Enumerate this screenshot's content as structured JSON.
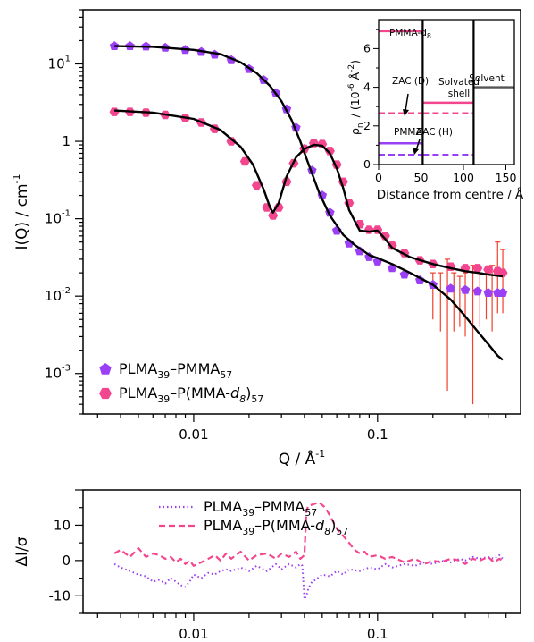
{
  "colors": {
    "purple": "#9b3ff5",
    "pink": "#f2468f",
    "fit": "#000000",
    "errorbar": "#f2402a",
    "inset_shell_label": "#8a8cf0",
    "inset_solvent_line": "#555555"
  },
  "chart_data": [
    {
      "type": "scatter",
      "xscale": "log",
      "yscale": "log",
      "xlim": [
        0.0025,
        0.6
      ],
      "ylim": [
        0.0003,
        50
      ],
      "xlabel": "Q / Å",
      "xlabel_sup": "-1",
      "ylabel": "I(Q) / cm",
      "ylabel_sup": "-1",
      "xticks": [
        {
          "value": 0.01,
          "label": "0.01"
        },
        {
          "value": 0.1,
          "label": "0.1"
        }
      ],
      "yticks": [
        {
          "value": 10,
          "base": "10",
          "exp": "1"
        },
        {
          "value": 1,
          "base": "1",
          "exp": ""
        },
        {
          "value": 0.1,
          "base": "10",
          "exp": "-1"
        },
        {
          "value": 0.01,
          "base": "10",
          "exp": "-2"
        },
        {
          "value": 0.001,
          "base": "10",
          "exp": "-3"
        }
      ],
      "legend": {
        "placement": "bottom-left",
        "entries": [
          {
            "parts": [
              [
                "PLMA",
                ""
              ],
              [
                "39",
                "sub"
              ],
              [
                "–PMMA",
                ""
              ],
              [
                "57",
                "sub"
              ]
            ]
          },
          {
            "parts": [
              [
                "PLMA",
                ""
              ],
              [
                "39",
                "sub"
              ],
              [
                "–P(MMA-",
                ""
              ],
              [
                "d",
                "italic"
              ],
              [
                "8",
                "sub-italic"
              ],
              [
                ")",
                ""
              ],
              [
                "57",
                "sub"
              ]
            ]
          }
        ]
      },
      "series": [
        {
          "marker": "pentagon",
          "x": [
            0.0037,
            0.0045,
            0.0055,
            0.007,
            0.009,
            0.011,
            0.013,
            0.016,
            0.02,
            0.024,
            0.028,
            0.032,
            0.036,
            0.04,
            0.044,
            0.05,
            0.055,
            0.06,
            0.07,
            0.08,
            0.09,
            0.1,
            0.12,
            0.14,
            0.17,
            0.2,
            0.25,
            0.3,
            0.35,
            0.4,
            0.45,
            0.48
          ],
          "y": [
            17,
            17,
            16.8,
            16.2,
            15.2,
            14.3,
            13.2,
            11.2,
            8.6,
            6.2,
            4.2,
            2.6,
            1.5,
            0.8,
            0.42,
            0.2,
            0.12,
            0.07,
            0.048,
            0.038,
            0.032,
            0.028,
            0.023,
            0.019,
            0.016,
            0.014,
            0.0125,
            0.012,
            0.0115,
            0.011,
            0.011,
            0.011
          ]
        },
        {
          "marker": "hexagon",
          "x": [
            0.0037,
            0.0045,
            0.0055,
            0.007,
            0.009,
            0.011,
            0.013,
            0.016,
            0.019,
            0.022,
            0.025,
            0.027,
            0.029,
            0.032,
            0.035,
            0.04,
            0.045,
            0.05,
            0.055,
            0.06,
            0.065,
            0.07,
            0.08,
            0.09,
            0.1,
            0.11,
            0.12,
            0.14,
            0.17,
            0.2,
            0.25,
            0.3,
            0.35,
            0.4,
            0.45,
            0.48
          ],
          "y": [
            2.4,
            2.4,
            2.35,
            2.2,
            2.0,
            1.75,
            1.45,
            1.0,
            0.55,
            0.27,
            0.14,
            0.11,
            0.14,
            0.3,
            0.52,
            0.8,
            0.95,
            0.92,
            0.75,
            0.5,
            0.3,
            0.16,
            0.085,
            0.072,
            0.072,
            0.06,
            0.045,
            0.036,
            0.029,
            0.026,
            0.024,
            0.023,
            0.023,
            0.022,
            0.021,
            0.02
          ]
        }
      ],
      "fits": [
        {
          "x": [
            0.0037,
            0.006,
            0.01,
            0.014,
            0.018,
            0.022,
            0.026,
            0.03,
            0.034,
            0.038,
            0.042,
            0.048,
            0.055,
            0.065,
            0.075,
            0.09,
            0.1,
            0.12,
            0.15,
            0.2,
            0.25,
            0.3,
            0.35,
            0.4,
            0.45,
            0.48
          ],
          "y": [
            17,
            16.6,
            15.2,
            13.4,
            10.5,
            7.6,
            5.2,
            3.3,
            1.9,
            1.0,
            0.52,
            0.22,
            0.11,
            0.062,
            0.046,
            0.034,
            0.031,
            0.026,
            0.02,
            0.014,
            0.009,
            0.0055,
            0.0035,
            0.0024,
            0.0017,
            0.0015
          ]
        },
        {
          "x": [
            0.0037,
            0.006,
            0.01,
            0.014,
            0.018,
            0.021,
            0.024,
            0.026,
            0.027,
            0.029,
            0.032,
            0.036,
            0.04,
            0.045,
            0.05,
            0.055,
            0.06,
            0.065,
            0.07,
            0.08,
            0.09,
            0.1,
            0.11,
            0.12,
            0.15,
            0.2,
            0.25,
            0.3,
            0.35,
            0.4,
            0.48
          ],
          "y": [
            2.5,
            2.35,
            1.95,
            1.4,
            0.85,
            0.5,
            0.24,
            0.14,
            0.12,
            0.16,
            0.35,
            0.62,
            0.8,
            0.9,
            0.88,
            0.7,
            0.45,
            0.25,
            0.13,
            0.07,
            0.068,
            0.07,
            0.055,
            0.042,
            0.032,
            0.026,
            0.023,
            0.021,
            0.02,
            0.019,
            0.018
          ]
        }
      ],
      "errorbars": [
        {
          "x": 0.2,
          "ylo": 0.005,
          "yhi": 0.02
        },
        {
          "x": 0.22,
          "ylo": 0.0035,
          "yhi": 0.02
        },
        {
          "x": 0.24,
          "ylo": 0.0006,
          "yhi": 0.03
        },
        {
          "x": 0.26,
          "ylo": 0.0035,
          "yhi": 0.02
        },
        {
          "x": 0.28,
          "ylo": 0.004,
          "yhi": 0.018
        },
        {
          "x": 0.3,
          "ylo": 0.003,
          "yhi": 0.02
        },
        {
          "x": 0.33,
          "ylo": 0.0004,
          "yhi": 0.025
        },
        {
          "x": 0.36,
          "ylo": 0.004,
          "yhi": 0.02
        },
        {
          "x": 0.39,
          "ylo": 0.005,
          "yhi": 0.022
        },
        {
          "x": 0.42,
          "ylo": 0.0035,
          "yhi": 0.025
        },
        {
          "x": 0.45,
          "ylo": 0.006,
          "yhi": 0.05
        },
        {
          "x": 0.48,
          "ylo": 0.006,
          "yhi": 0.04
        }
      ]
    },
    {
      "type": "line",
      "xlim": [
        0,
        160
      ],
      "ylim": [
        0,
        7.5
      ],
      "xlabel": "Distance from centre / Å",
      "ylabel": "ρ",
      "ylabel_sub": "n",
      "ylabel_unit": "/ (10",
      "ylabel_exp": "-6",
      "ylabel_unit2": " Å",
      "ylabel_exp2": "-2",
      "ylabel_close": ")",
      "xticks": [
        {
          "value": 0,
          "label": "0"
        },
        {
          "value": 50,
          "label": "50"
        },
        {
          "value": 100,
          "label": "100"
        },
        {
          "value": 150,
          "label": "150"
        }
      ],
      "yticks": [
        {
          "value": 0,
          "label": "0"
        },
        {
          "value": 2,
          "label": "2"
        },
        {
          "value": 4,
          "label": "4"
        },
        {
          "value": 6,
          "label": "6"
        }
      ],
      "boundaries": [
        52,
        112
      ],
      "levels": [
        {
          "name": "PMMA-d8",
          "from": 0,
          "to": 52,
          "y": 6.9,
          "style": "solid",
          "color": "pink"
        },
        {
          "name": "ZAC (D)",
          "from": 0,
          "to": 52,
          "y": 2.65,
          "style": "dashed",
          "color": "pink"
        },
        {
          "name": "PMMA",
          "from": 0,
          "to": 52,
          "y": 1.1,
          "style": "solid",
          "color": "purple"
        },
        {
          "name": "ZAC (H)",
          "from": 0,
          "to": 52,
          "y": 0.5,
          "style": "dashed",
          "color": "purple"
        },
        {
          "name": "Shell D",
          "from": 52,
          "to": 112,
          "y": 3.2,
          "style": "solid",
          "color": "pink"
        },
        {
          "name": "Shell D dashed",
          "from": 52,
          "to": 112,
          "y": 2.65,
          "style": "dashed",
          "color": "pink"
        },
        {
          "name": "Shell H dashed",
          "from": 52,
          "to": 112,
          "y": 0.5,
          "style": "dashed",
          "color": "purple"
        },
        {
          "name": "Solvent",
          "from": 112,
          "to": 160,
          "y": 4.0,
          "style": "solid",
          "color": "solvent"
        }
      ],
      "labels": {
        "pmma_d8": "PMMA-d",
        "pmma_d8_sub": "8",
        "zac_d": "ZAC (D)",
        "pmma": "PMMA",
        "zac_h": "ZAC (H)",
        "shell_1": "Solvated",
        "shell_2": "shell",
        "solvent": "Solvent"
      }
    },
    {
      "type": "line",
      "xscale": "log",
      "xlim": [
        0.0025,
        0.6
      ],
      "ylim": [
        -15,
        20
      ],
      "ylabel": "ΔI/σ",
      "xticks": [
        {
          "value": 0.01,
          "label": "0.01"
        },
        {
          "value": 0.1,
          "label": "0.1"
        }
      ],
      "yticks": [
        {
          "value": -10,
          "label": "-10"
        },
        {
          "value": 0,
          "label": "0"
        },
        {
          "value": 10,
          "label": "10"
        }
      ],
      "legend": {
        "placement": "top-right",
        "entries": [
          {
            "style": "dotted",
            "color": "purple",
            "parts": [
              [
                "PLMA",
                ""
              ],
              [
                "39",
                "sub"
              ],
              [
                "–PMMA",
                ""
              ],
              [
                "57",
                "sub"
              ]
            ]
          },
          {
            "style": "dashed",
            "color": "pink",
            "parts": [
              [
                "PLMA",
                ""
              ],
              [
                "39",
                "sub"
              ],
              [
                "–P(MMA-",
                ""
              ],
              [
                "d",
                "italic"
              ],
              [
                "8",
                "sub-italic"
              ],
              [
                ")",
                ""
              ],
              [
                "57",
                "sub"
              ]
            ]
          }
        ]
      },
      "series": [
        {
          "style": "dotted",
          "x": [
            0.0037,
            0.004,
            0.0045,
            0.005,
            0.0055,
            0.006,
            0.0065,
            0.007,
            0.0075,
            0.008,
            0.0085,
            0.009,
            0.0095,
            0.01,
            0.011,
            0.012,
            0.013,
            0.014,
            0.015,
            0.016,
            0.018,
            0.02,
            0.022,
            0.025,
            0.028,
            0.03,
            0.033,
            0.036,
            0.038,
            0.039,
            0.04,
            0.041,
            0.042,
            0.044,
            0.046,
            0.05,
            0.055,
            0.06,
            0.065,
            0.07,
            0.08,
            0.09,
            0.1,
            0.11,
            0.12,
            0.14,
            0.16,
            0.18,
            0.2,
            0.22,
            0.25,
            0.28,
            0.3,
            0.33,
            0.36,
            0.4,
            0.43,
            0.46,
            0.48
          ],
          "y": [
            -1,
            -2,
            -3,
            -4,
            -4.5,
            -6,
            -5.5,
            -6.5,
            -5,
            -6,
            -7,
            -7.5,
            -6,
            -4,
            -5,
            -3.5,
            -4,
            -3,
            -2.5,
            -3,
            -2,
            -3,
            -1.5,
            -3,
            -1,
            -2.5,
            -1,
            -2,
            -1,
            -1.5,
            -11,
            -10,
            -8,
            -6,
            -5.5,
            -4,
            -4.5,
            -3,
            -4,
            -2.5,
            -3,
            -2,
            -2.5,
            -1,
            -2,
            -1,
            -1.5,
            -0.5,
            -1,
            0,
            -0.5,
            0.5,
            0,
            1,
            0.5,
            1,
            0.5,
            1.5,
            0.5
          ]
        },
        {
          "style": "dashed",
          "x": [
            0.0037,
            0.004,
            0.0045,
            0.005,
            0.0055,
            0.006,
            0.0065,
            0.007,
            0.0075,
            0.008,
            0.0085,
            0.009,
            0.0095,
            0.01,
            0.011,
            0.012,
            0.013,
            0.014,
            0.015,
            0.016,
            0.018,
            0.02,
            0.022,
            0.025,
            0.028,
            0.03,
            0.033,
            0.036,
            0.038,
            0.04,
            0.041,
            0.042,
            0.045,
            0.048,
            0.052,
            0.056,
            0.06,
            0.065,
            0.07,
            0.075,
            0.08,
            0.085,
            0.09,
            0.1,
            0.11,
            0.12,
            0.14,
            0.16,
            0.18,
            0.2,
            0.22,
            0.25,
            0.28,
            0.3,
            0.33,
            0.36,
            0.4,
            0.43,
            0.46,
            0.48
          ],
          "y": [
            2,
            3,
            1,
            3.5,
            1,
            2,
            1.5,
            0.5,
            1,
            -0.5,
            0.5,
            -1,
            0,
            -1.5,
            -0.5,
            0.5,
            1.5,
            0,
            2,
            0.5,
            2.5,
            0,
            1.5,
            2,
            0.5,
            2,
            1,
            2.5,
            0.5,
            1.5,
            14,
            15.5,
            16,
            16.5,
            15,
            12,
            9,
            7,
            5,
            3,
            2,
            2.5,
            1,
            1.5,
            0.5,
            1,
            -0.5,
            0.5,
            -1,
            0,
            -0.5,
            0.5,
            0,
            -1,
            0.5,
            0,
            1,
            -0.5,
            0.5,
            0
          ]
        }
      ]
    }
  ]
}
